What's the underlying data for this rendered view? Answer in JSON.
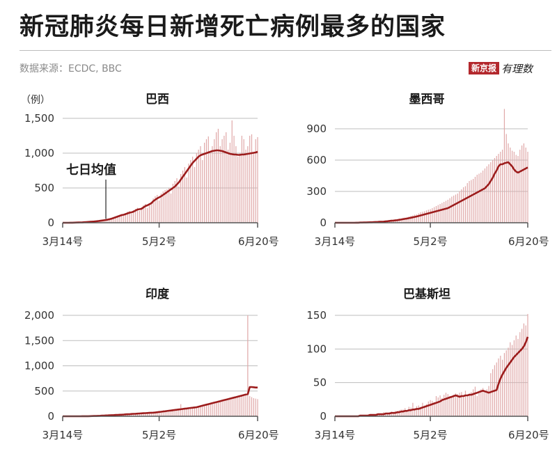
{
  "header": {
    "title": "新冠肺炎每日新增死亡病例最多的国家",
    "source": "数据来源：ECDC, BBC",
    "brand_name": "新京报",
    "brand_mark": "有理数"
  },
  "colors": {
    "bars": "#e0a8a8",
    "average_line": "#9c1c1c",
    "brand": "#b3282d"
  },
  "chart_data": [
    {
      "type": "bar",
      "title": "巴西",
      "unit_label": "（例）",
      "annotation": "七日均值",
      "x_ticks": [
        "3月14号",
        "5月2号",
        "6月20号"
      ],
      "x_range": [
        "3月14号",
        "6月20号"
      ],
      "y_ticks": [
        0,
        500,
        1000,
        1500
      ],
      "ylim": [
        0,
        1500
      ],
      "grid": true,
      "series": [
        {
          "values": [
            0,
            0,
            0,
            0,
            1,
            1,
            2,
            3,
            4,
            5,
            6,
            8,
            10,
            12,
            14,
            16,
            18,
            21,
            24,
            28,
            32,
            36,
            40,
            46,
            52,
            60,
            70,
            80,
            90,
            100,
            110,
            115,
            125,
            135,
            145,
            150,
            160,
            175,
            190,
            195,
            200,
            220,
            240,
            250,
            265,
            280,
            310,
            330,
            350,
            365,
            380,
            400,
            420,
            440,
            460,
            480,
            500,
            520,
            550,
            580,
            620,
            660,
            700,
            740,
            780,
            820,
            860,
            890,
            920,
            950,
            970,
            980,
            990,
            1000,
            1010,
            1020,
            1030,
            1035,
            1040,
            1040,
            1035,
            1030,
            1020,
            1010,
            1000,
            990,
            985,
            980,
            980,
            975,
            975,
            980,
            980,
            985,
            990,
            995,
            1000,
            1005,
            1010,
            1020
          ]
        },
        {
          "values": [
            0,
            0,
            0,
            0,
            2,
            1,
            3,
            4,
            5,
            6,
            7,
            10,
            12,
            15,
            18,
            20,
            22,
            26,
            28,
            33,
            38,
            44,
            48,
            55,
            62,
            70,
            80,
            95,
            105,
            115,
            125,
            100,
            140,
            160,
            170,
            130,
            180,
            200,
            215,
            170,
            220,
            250,
            270,
            210,
            280,
            300,
            350,
            380,
            400,
            320,
            420,
            450,
            470,
            480,
            500,
            420,
            560,
            600,
            640,
            520,
            700,
            750,
            800,
            650,
            850,
            900,
            950,
            800,
            1000,
            1050,
            1100,
            900,
            1150,
            1200,
            1240,
            1000,
            1100,
            1200,
            1300,
            1350,
            1100,
            1200,
            1250,
            1300,
            1050,
            1150,
            1470,
            1250,
            1100,
            950,
            1000,
            1250,
            1200,
            1050,
            1100,
            1250,
            1270,
            1000,
            1200,
            1230
          ]
        }
      ],
      "series_notes": "series[0] = 七日均值 (line), series[1] = daily new deaths (bars)"
    },
    {
      "type": "bar",
      "title": "墨西哥",
      "x_ticks": [
        "3月14号",
        "5月2号",
        "6月20号"
      ],
      "x_range": [
        "3月14号",
        "6月20号"
      ],
      "y_ticks": [
        0,
        300,
        600,
        900
      ],
      "ylim": [
        0,
        1000
      ],
      "grid": true,
      "series": [
        {
          "values": [
            0,
            0,
            0,
            0,
            0,
            0,
            0,
            0,
            0,
            0,
            0,
            1,
            1,
            2,
            2,
            3,
            3,
            4,
            5,
            5,
            6,
            7,
            8,
            9,
            10,
            11,
            13,
            15,
            17,
            19,
            21,
            23,
            25,
            28,
            31,
            34,
            37,
            40,
            44,
            48,
            52,
            56,
            60,
            65,
            70,
            75,
            80,
            85,
            90,
            95,
            100,
            105,
            110,
            115,
            120,
            125,
            130,
            135,
            140,
            150,
            160,
            170,
            180,
            190,
            200,
            210,
            220,
            230,
            240,
            250,
            260,
            270,
            280,
            290,
            300,
            310,
            320,
            330,
            350,
            370,
            400,
            430,
            470,
            500,
            540,
            560,
            560,
            570,
            575,
            580,
            560,
            540,
            510,
            490,
            480,
            490,
            500,
            510,
            520,
            530
          ]
        },
        {
          "values": [
            0,
            0,
            0,
            0,
            0,
            0,
            0,
            0,
            0,
            0,
            0,
            1,
            1,
            2,
            2,
            3,
            4,
            5,
            6,
            5,
            8,
            9,
            10,
            12,
            14,
            15,
            18,
            20,
            24,
            28,
            30,
            32,
            35,
            40,
            42,
            48,
            50,
            55,
            60,
            65,
            70,
            78,
            80,
            90,
            100,
            105,
            110,
            118,
            125,
            130,
            140,
            150,
            160,
            170,
            180,
            190,
            200,
            210,
            220,
            235,
            250,
            260,
            270,
            280,
            300,
            320,
            340,
            350,
            380,
            400,
            410,
            420,
            440,
            460,
            470,
            480,
            500,
            520,
            540,
            560,
            580,
            600,
            620,
            640,
            660,
            680,
            700,
            1090,
            850,
            760,
            720,
            690,
            680,
            650,
            640,
            700,
            740,
            760,
            720,
            680
          ]
        }
      ],
      "series_notes": "series[0] = 七日均值 (line), series[1] = daily new deaths (bars)"
    },
    {
      "type": "bar",
      "title": "印度",
      "x_ticks": [
        "3月14号",
        "5月2号",
        "6月20号"
      ],
      "x_range": [
        "3月14号",
        "6月20号"
      ],
      "y_ticks": [
        0,
        500,
        1000,
        1500,
        2000
      ],
      "ylim": [
        0,
        2000
      ],
      "grid": true,
      "series": [
        {
          "values": [
            0,
            0,
            0,
            0,
            0,
            0,
            0,
            0,
            0,
            0,
            1,
            1,
            2,
            2,
            3,
            4,
            5,
            6,
            8,
            10,
            12,
            14,
            16,
            18,
            20,
            22,
            24,
            26,
            28,
            30,
            32,
            35,
            38,
            40,
            42,
            45,
            48,
            50,
            52,
            55,
            58,
            60,
            62,
            65,
            68,
            70,
            72,
            75,
            80,
            85,
            90,
            95,
            100,
            105,
            110,
            115,
            120,
            125,
            130,
            135,
            140,
            145,
            150,
            155,
            160,
            165,
            170,
            175,
            180,
            190,
            200,
            210,
            220,
            230,
            240,
            250,
            260,
            270,
            280,
            290,
            300,
            310,
            320,
            330,
            340,
            350,
            360,
            370,
            380,
            390,
            400,
            410,
            420,
            430,
            440,
            580,
            580,
            575,
            570,
            570
          ]
        },
        {
          "values": [
            0,
            0,
            0,
            0,
            0,
            0,
            0,
            0,
            0,
            0,
            1,
            1,
            2,
            3,
            4,
            5,
            6,
            8,
            9,
            12,
            14,
            15,
            18,
            20,
            24,
            25,
            28,
            30,
            32,
            34,
            36,
            40,
            42,
            45,
            48,
            50,
            52,
            55,
            58,
            60,
            62,
            65,
            68,
            70,
            72,
            75,
            80,
            85,
            90,
            95,
            100,
            105,
            110,
            118,
            120,
            125,
            130,
            135,
            140,
            145,
            240,
            150,
            155,
            160,
            165,
            170,
            175,
            180,
            185,
            195,
            205,
            215,
            225,
            235,
            245,
            255,
            265,
            275,
            285,
            295,
            305,
            315,
            325,
            335,
            345,
            355,
            365,
            375,
            385,
            395,
            405,
            415,
            425,
            435,
            2000,
            400,
            380,
            360,
            350,
            340
          ]
        }
      ],
      "series_notes": "series[0] = 七日均值 (line), series[1] = daily new deaths (bars)"
    },
    {
      "type": "bar",
      "title": "巴基斯坦",
      "x_ticks": [
        "3月14号",
        "5月2号",
        "6月20号"
      ],
      "x_range": [
        "3月14号",
        "6月20号"
      ],
      "y_ticks": [
        0,
        50,
        100,
        150
      ],
      "ylim": [
        0,
        150
      ],
      "grid": true,
      "series": [
        {
          "values": [
            0,
            0,
            0,
            0,
            0,
            0,
            0,
            0,
            0,
            0,
            0,
            0,
            0,
            1,
            1,
            1,
            1,
            1,
            2,
            2,
            2,
            2,
            3,
            3,
            3,
            3,
            4,
            4,
            4,
            5,
            5,
            5,
            6,
            6,
            7,
            7,
            8,
            8,
            9,
            9,
            10,
            10,
            11,
            11,
            12,
            13,
            14,
            15,
            16,
            17,
            18,
            19,
            20,
            21,
            22,
            24,
            25,
            26,
            27,
            28,
            29,
            30,
            31,
            30,
            29,
            30,
            30,
            31,
            31,
            32,
            32,
            33,
            34,
            35,
            36,
            37,
            38,
            37,
            36,
            35,
            36,
            37,
            38,
            39,
            48,
            56,
            62,
            67,
            72,
            76,
            80,
            84,
            88,
            91,
            94,
            97,
            100,
            104,
            110,
            118
          ]
        },
        {
          "values": [
            0,
            0,
            0,
            0,
            0,
            0,
            0,
            0,
            0,
            0,
            1,
            0,
            1,
            1,
            2,
            1,
            0,
            2,
            3,
            2,
            3,
            3,
            4,
            3,
            4,
            6,
            4,
            5,
            6,
            7,
            6,
            8,
            8,
            9,
            10,
            10,
            12,
            9,
            14,
            13,
            20,
            12,
            15,
            16,
            14,
            20,
            16,
            18,
            22,
            24,
            23,
            21,
            30,
            28,
            31,
            27,
            32,
            35,
            33,
            30,
            28,
            32,
            34,
            33,
            35,
            36,
            30,
            38,
            32,
            34,
            36,
            40,
            44,
            30,
            38,
            40,
            42,
            36,
            40,
            45,
            64,
            70,
            76,
            80,
            86,
            90,
            84,
            94,
            98,
            102,
            110,
            106,
            113,
            120,
            115,
            125,
            130,
            138,
            135,
            152
          ]
        }
      ],
      "series_notes": "series[0] = 七日均值 (line), series[1] = daily new deaths (bars)"
    }
  ]
}
